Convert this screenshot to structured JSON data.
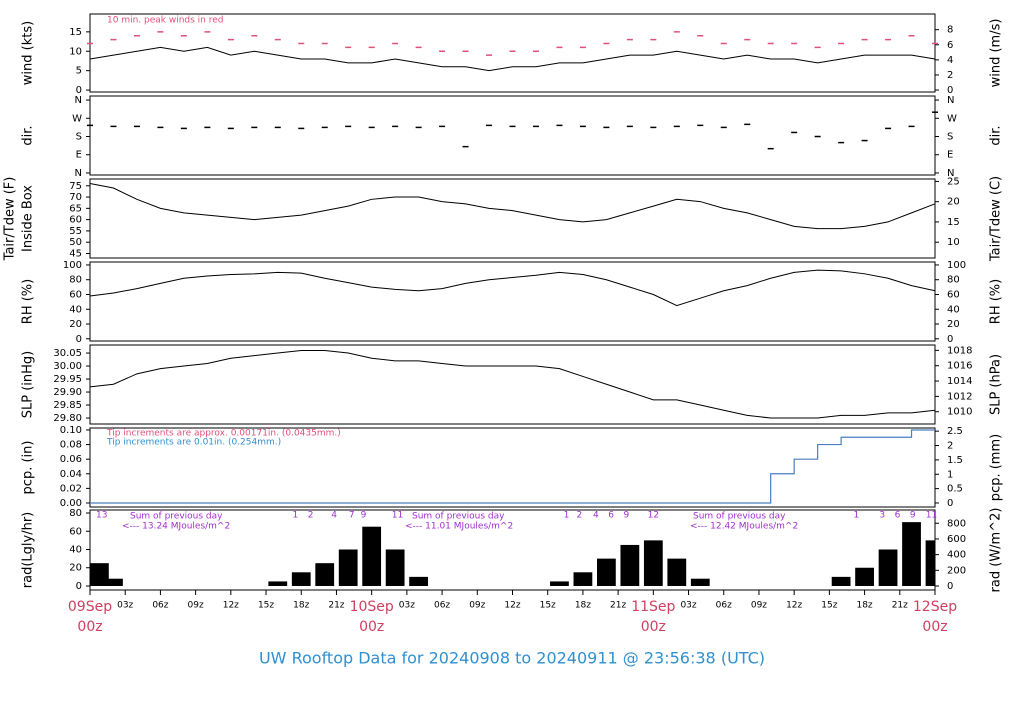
{
  "x_axis": {
    "xlim": [
      0,
      72
    ],
    "x": [
      0,
      2,
      4,
      6,
      8,
      10,
      12,
      14,
      16,
      18,
      20,
      22,
      24,
      26,
      28,
      30,
      32,
      34,
      36,
      38,
      40,
      42,
      44,
      46,
      48,
      50,
      52,
      54,
      56,
      58,
      60,
      62,
      64,
      66,
      68,
      70,
      72
    ],
    "xticks": [
      {
        "value": 0,
        "label": "09Sep",
        "sublabel": "00z"
      },
      {
        "value": 3,
        "label": "03z"
      },
      {
        "value": 6,
        "label": "06z"
      },
      {
        "value": 9,
        "label": "09z"
      },
      {
        "value": 12,
        "label": "12z"
      },
      {
        "value": 15,
        "label": "15z"
      },
      {
        "value": 18,
        "label": "18z"
      },
      {
        "value": 21,
        "label": "21z"
      },
      {
        "value": 24,
        "label": "10Sep",
        "sublabel": "00z"
      },
      {
        "value": 27,
        "label": "03z"
      },
      {
        "value": 30,
        "label": "06z"
      },
      {
        "value": 33,
        "label": "09z"
      },
      {
        "value": 36,
        "label": "12z"
      },
      {
        "value": 39,
        "label": "15z"
      },
      {
        "value": 42,
        "label": "18z"
      },
      {
        "value": 45,
        "label": "21z"
      },
      {
        "value": 48,
        "label": "11Sep",
        "sublabel": "00z"
      },
      {
        "value": 51,
        "label": "03z"
      },
      {
        "value": 54,
        "label": "06z"
      },
      {
        "value": 57,
        "label": "09z"
      },
      {
        "value": 60,
        "label": "12z"
      },
      {
        "value": 63,
        "label": "15z"
      },
      {
        "value": 66,
        "label": "18z"
      },
      {
        "value": 69,
        "label": "21z"
      },
      {
        "value": 72,
        "label": "12Sep",
        "sublabel": "00z"
      }
    ]
  },
  "chart_data": [
    {
      "type": "line",
      "ylabel": "wind (kts)",
      "y2label": "wind (m/s)",
      "ylim": [
        -0.5,
        19.6
      ],
      "yticks": [
        0,
        5,
        10,
        15
      ],
      "y2lim": [
        -0.26,
        10.08
      ],
      "y2ticks": [
        0,
        2,
        4,
        6,
        8
      ],
      "annotations": [
        {
          "text": "10 min. peak winds in red",
          "color": "#e0507a"
        }
      ],
      "series": [
        {
          "style": "line",
          "color": "#000000",
          "values": [
            8,
            9,
            10,
            11,
            10,
            11,
            9,
            10,
            9,
            8,
            8,
            7,
            7,
            8,
            7,
            6,
            6,
            5,
            6,
            6,
            7,
            7,
            8,
            9,
            9,
            10,
            9,
            8,
            9,
            8,
            8,
            7,
            8,
            9,
            9,
            9,
            8
          ]
        },
        {
          "style": "dash",
          "color": "#e0507a",
          "values": [
            12,
            13,
            14,
            15,
            14,
            15,
            13,
            14,
            13,
            12,
            12,
            11,
            11,
            12,
            11,
            10,
            10,
            9,
            10,
            10,
            11,
            11,
            12,
            13,
            13,
            15,
            14,
            12,
            13,
            12,
            12,
            11,
            12,
            13,
            13,
            14,
            12
          ]
        }
      ]
    },
    {
      "type": "line",
      "ylabel": "dir.",
      "y2label": "dir.",
      "ylim": [
        -10,
        380
      ],
      "yticks": [
        {
          "value": 360,
          "label": "N"
        },
        {
          "value": 270,
          "label": "W"
        },
        {
          "value": 180,
          "label": "S"
        },
        {
          "value": 90,
          "label": "E"
        },
        {
          "value": 0,
          "label": "N"
        }
      ],
      "series": [
        {
          "style": "dash",
          "color": "#000000",
          "values": [
            235,
            230,
            230,
            225,
            220,
            225,
            220,
            225,
            225,
            220,
            225,
            230,
            225,
            230,
            225,
            230,
            130,
            235,
            230,
            230,
            235,
            230,
            225,
            230,
            225,
            230,
            235,
            225,
            240,
            120,
            200,
            180,
            150,
            160,
            220,
            230,
            300
          ]
        }
      ]
    },
    {
      "type": "line",
      "ylabel": "Tair/Tdew (F)",
      "ylabel2": "Inside Box",
      "y2label": "Tair/Tdew (C)",
      "ylim": [
        43,
        78
      ],
      "yticks": [
        45,
        50,
        55,
        60,
        65,
        70,
        75
      ],
      "y2lim": [
        6.1,
        25.6
      ],
      "y2ticks": [
        10,
        15,
        20,
        25
      ],
      "series": [
        {
          "style": "line",
          "color": "#000000",
          "values": [
            76,
            74,
            69,
            65,
            63,
            62,
            61,
            60,
            61,
            62,
            64,
            66,
            69,
            70,
            70,
            68,
            67,
            65,
            64,
            62,
            60,
            59,
            60,
            63,
            66,
            69,
            68,
            65,
            63,
            60,
            57,
            56,
            56,
            57,
            59,
            63,
            67
          ]
        }
      ]
    },
    {
      "type": "line",
      "ylabel": "RH (%)",
      "y2label": "RH (%)",
      "ylim": [
        -3,
        104
      ],
      "yticks": [
        0,
        20,
        40,
        60,
        80,
        100
      ],
      "series": [
        {
          "style": "line",
          "color": "#000000",
          "values": [
            58,
            62,
            68,
            75,
            82,
            85,
            87,
            88,
            90,
            89,
            82,
            76,
            70,
            67,
            65,
            68,
            75,
            80,
            83,
            86,
            90,
            87,
            80,
            70,
            60,
            45,
            55,
            65,
            72,
            82,
            90,
            93,
            92,
            88,
            82,
            72,
            65
          ]
        }
      ]
    },
    {
      "type": "line",
      "ylabel": "SLP (inHg)",
      "y2label": "SLP (hPa)",
      "ylim": [
        29.777,
        30.081
      ],
      "yticks": [
        {
          "value": 29.8,
          "label": "29.80"
        },
        29.85,
        {
          "value": 29.9,
          "label": "29.90"
        },
        29.95,
        {
          "value": 30,
          "label": "30.00"
        },
        30.05
      ],
      "y2lim": [
        1008.4,
        1018.7
      ],
      "y2ticks": [
        1010,
        1012,
        1014,
        1016,
        1018
      ],
      "series": [
        {
          "style": "line",
          "color": "#000000",
          "values": [
            29.92,
            29.93,
            29.97,
            29.99,
            30.0,
            30.01,
            30.03,
            30.04,
            30.05,
            30.06,
            30.06,
            30.05,
            30.03,
            30.02,
            30.02,
            30.01,
            30.0,
            30.0,
            30.0,
            30.0,
            29.99,
            29.96,
            29.93,
            29.9,
            29.87,
            29.87,
            29.85,
            29.83,
            29.81,
            29.8,
            29.8,
            29.8,
            29.81,
            29.81,
            29.82,
            29.82,
            29.83
          ]
        }
      ]
    },
    {
      "type": "line",
      "ylabel": "pcp. (in)",
      "y2label": "pcp. (mm)",
      "ylim": [
        -0.0055,
        0.1027
      ],
      "yticks": [
        {
          "value": 0,
          "label": "0.00"
        },
        0.02,
        0.04,
        0.06,
        0.08,
        {
          "value": 0.1,
          "label": "0.10"
        }
      ],
      "y2lim": [
        -0.14,
        2.61
      ],
      "y2ticks": [
        0,
        0.5,
        1,
        1.5,
        2,
        2.5
      ],
      "annotations": [
        {
          "text": "Tip increments are approx. 0.00171in. (0.0435mm.)",
          "color": "#e0507a"
        },
        {
          "text": "Tip increments are 0.01in. (0.254mm.)",
          "color": "#3090d0"
        }
      ],
      "series": [
        {
          "style": "step",
          "color": "#4a7fc0",
          "values": [
            0,
            0,
            0,
            0,
            0,
            0,
            0,
            0,
            0,
            0,
            0,
            0,
            0,
            0,
            0,
            0,
            0,
            0,
            0,
            0,
            0,
            0,
            0,
            0,
            0,
            0,
            0,
            0,
            0,
            0.04,
            0.06,
            0.08,
            0.09,
            0.09,
            0.09,
            0.1,
            0.1
          ]
        }
      ]
    },
    {
      "type": "line",
      "ylabel": "rad(Lgly/hr)",
      "y2label": "rad (W/m^2)",
      "ylim": [
        -4.4,
        83.3
      ],
      "yticks": [
        0,
        20,
        40,
        60,
        80
      ],
      "y2lim": [
        -51,
        969
      ],
      "y2ticks": [
        0,
        200,
        400,
        600,
        800
      ],
      "annotations": [
        {
          "text": "Sum of previous day",
          "color": "#a030d0"
        },
        {
          "text": "<--- 13.24 MJoules/m^2",
          "color": "#a030d0"
        },
        {
          "text": "Sum of previous day",
          "color": "#a030d0"
        },
        {
          "text": "<--- 11.01 MJoules/m^2",
          "color": "#a030d0"
        },
        {
          "text": "Sum of previous day",
          "color": "#a030d0"
        },
        {
          "text": "<--- 12.42 MJoules/m^2",
          "color": "#a030d0"
        }
      ],
      "hour_marks": [
        {
          "hour": 1,
          "label": "13"
        },
        {
          "hour": 17.5,
          "label": "1"
        },
        {
          "hour": 18.8,
          "label": "2"
        },
        {
          "hour": 20.8,
          "label": "4"
        },
        {
          "hour": 22.3,
          "label": "7"
        },
        {
          "hour": 23.3,
          "label": "9"
        },
        {
          "hour": 26.2,
          "label": "11"
        },
        {
          "hour": 40.6,
          "label": "1"
        },
        {
          "hour": 41.7,
          "label": "2"
        },
        {
          "hour": 43.1,
          "label": "4"
        },
        {
          "hour": 44.4,
          "label": "6"
        },
        {
          "hour": 45.7,
          "label": "9"
        },
        {
          "hour": 48,
          "label": "12"
        },
        {
          "hour": 65.3,
          "label": "1"
        },
        {
          "hour": 67.5,
          "label": "3"
        },
        {
          "hour": 68.8,
          "label": "6"
        },
        {
          "hour": 70.1,
          "label": "9"
        },
        {
          "hour": 71.7,
          "label": "11"
        }
      ],
      "series": [
        {
          "style": "bar",
          "color": "#000000",
          "values": [
            25,
            8,
            0,
            0,
            0,
            0,
            0,
            0,
            5,
            15,
            25,
            40,
            65,
            40,
            10,
            0,
            0,
            0,
            0,
            0,
            5,
            15,
            30,
            45,
            50,
            30,
            8,
            0,
            0,
            0,
            0,
            0,
            10,
            20,
            40,
            70,
            50
          ]
        }
      ]
    }
  ],
  "footer": {
    "title": "UW Rooftop Data for 20240908  to  20240911 @ 23:56:38  (UTC)"
  }
}
